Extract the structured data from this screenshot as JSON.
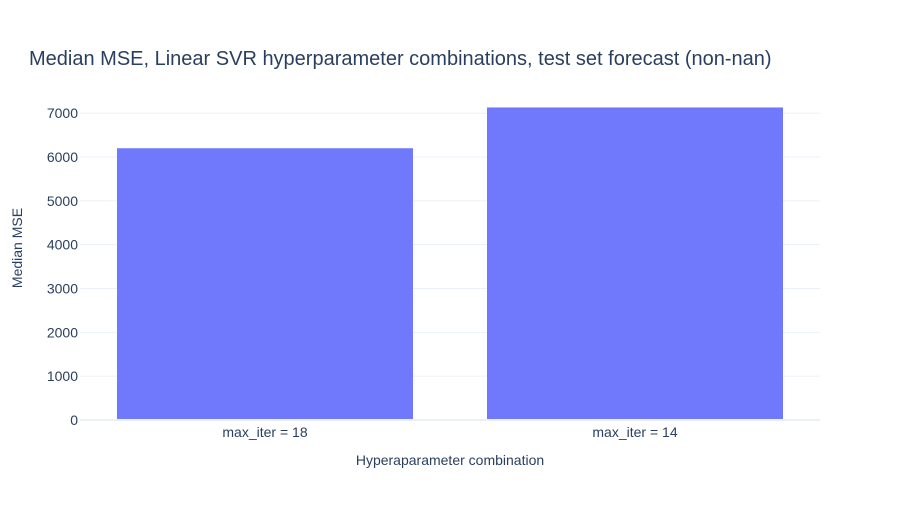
{
  "chart_data": {
    "type": "bar",
    "title": "Median MSE, Linear SVR hyperparameter combinations, test set forecast (non-nan)",
    "xlabel": "Hyperaparameter combination",
    "ylabel": "Median MSE",
    "categories": [
      "max_iter = 18",
      "max_iter = 14"
    ],
    "values": [
      6200,
      7130
    ],
    "ylim": [
      0,
      7300
    ],
    "yticks": [
      0,
      1000,
      2000,
      3000,
      4000,
      5000,
      6000,
      7000
    ],
    "grid": true,
    "legend": "none",
    "bar_color": "#7079fb"
  }
}
